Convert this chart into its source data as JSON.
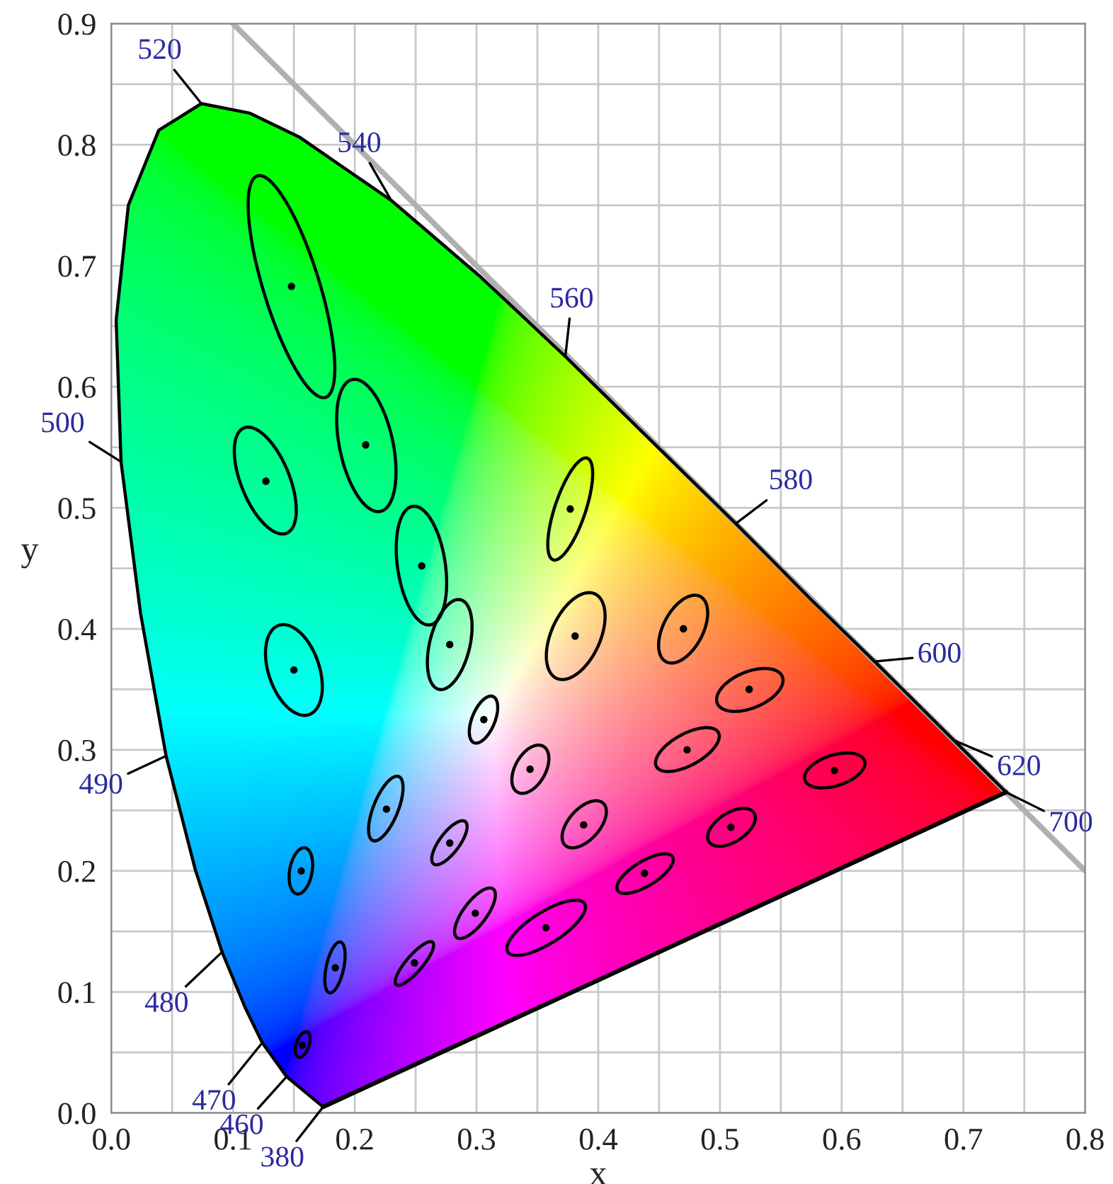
{
  "chart_data": {
    "type": "line",
    "xlabel": "x",
    "ylabel": "y",
    "xlim": [
      0,
      0.8
    ],
    "ylim": [
      0,
      0.9
    ],
    "xticks": [
      {
        "value": 0,
        "label": "0.0"
      },
      {
        "value": 0.05,
        "label": null
      },
      0.1,
      {
        "value": 0.15,
        "label": null
      },
      0.2,
      {
        "value": 0.25,
        "label": null
      },
      0.3,
      {
        "value": 0.35,
        "label": null
      },
      0.4,
      {
        "value": 0.45,
        "label": null
      },
      0.5,
      {
        "value": 0.55,
        "label": null
      },
      0.6,
      {
        "value": 0.65,
        "label": null
      },
      0.7,
      {
        "value": 0.75,
        "label": null
      },
      0.8
    ],
    "yticks": [
      {
        "value": 0,
        "label": "0.0"
      },
      {
        "value": 0.05,
        "label": null
      },
      0.1,
      {
        "value": 0.15,
        "label": null
      },
      0.2,
      {
        "value": 0.25,
        "label": null
      },
      0.3,
      {
        "value": 0.35,
        "label": null
      },
      0.4,
      {
        "value": 0.45,
        "label": null
      },
      0.5,
      {
        "value": 0.55,
        "label": null
      },
      0.6,
      {
        "value": 0.65,
        "label": null
      },
      0.7,
      {
        "value": 0.75,
        "label": null
      },
      0.8,
      {
        "value": 0.85,
        "label": null
      },
      0.9
    ],
    "grid": true,
    "series": [
      {
        "color": "#000000",
        "x": [
          0.174,
          0.144,
          0.124,
          0.11,
          0.091,
          0.069,
          0.045,
          0.024,
          0.008,
          0.004,
          0.014,
          0.039,
          0.074,
          0.114,
          0.155,
          0.23,
          0.302,
          0.373,
          0.444,
          0.513,
          0.575,
          0.627,
          0.692,
          0.719,
          0.735
        ],
        "values": [
          0.005,
          0.03,
          0.058,
          0.087,
          0.133,
          0.201,
          0.295,
          0.413,
          0.538,
          0.655,
          0.75,
          0.812,
          0.834,
          0.826,
          0.806,
          0.754,
          0.692,
          0.625,
          0.555,
          0.487,
          0.424,
          0.373,
          0.308,
          0.281,
          0.265
        ]
      },
      {
        "color": "#000000",
        "x": [
          0.735,
          0.174
        ],
        "values": [
          0.265,
          0.005
        ]
      },
      {
        "color": "#b0b0b0",
        "x": [
          0.1,
          0.8
        ],
        "values": [
          0.9,
          0.2
        ]
      },
      {
        "type": "scatter",
        "marker": "circle",
        "color": "#000000",
        "x": [
          0.148,
          0.127,
          0.209,
          0.255,
          0.278,
          0.15,
          0.377,
          0.381,
          0.47,
          0.524,
          0.306,
          0.473,
          0.594,
          0.344,
          0.388,
          0.509,
          0.226,
          0.278,
          0.438,
          0.299,
          0.357,
          0.156,
          0.249,
          0.184,
          0.157
        ],
        "values": [
          0.683,
          0.522,
          0.552,
          0.452,
          0.387,
          0.366,
          0.499,
          0.394,
          0.4,
          0.35,
          0.325,
          0.3,
          0.283,
          0.284,
          0.238,
          0.236,
          0.251,
          0.223,
          0.198,
          0.165,
          0.153,
          0.2,
          0.124,
          0.12,
          0.056
        ]
      }
    ],
    "annotations": [
      {
        "text": "380",
        "x": 0.174,
        "y": 0.005
      },
      {
        "text": "460",
        "x": 0.144,
        "y": 0.03
      },
      {
        "text": "470",
        "x": 0.124,
        "y": 0.058
      },
      {
        "text": "480",
        "x": 0.091,
        "y": 0.133
      },
      {
        "text": "490",
        "x": 0.045,
        "y": 0.295
      },
      {
        "text": "500",
        "x": 0.008,
        "y": 0.538
      },
      {
        "text": "520",
        "x": 0.074,
        "y": 0.834
      },
      {
        "text": "540",
        "x": 0.23,
        "y": 0.754
      },
      {
        "text": "560",
        "x": 0.373,
        "y": 0.625
      },
      {
        "text": "580",
        "x": 0.513,
        "y": 0.487
      },
      {
        "text": "600",
        "x": 0.627,
        "y": 0.373
      },
      {
        "text": "620",
        "x": 0.692,
        "y": 0.308
      },
      {
        "text": "700",
        "x": 0.735,
        "y": 0.265
      }
    ]
  }
}
